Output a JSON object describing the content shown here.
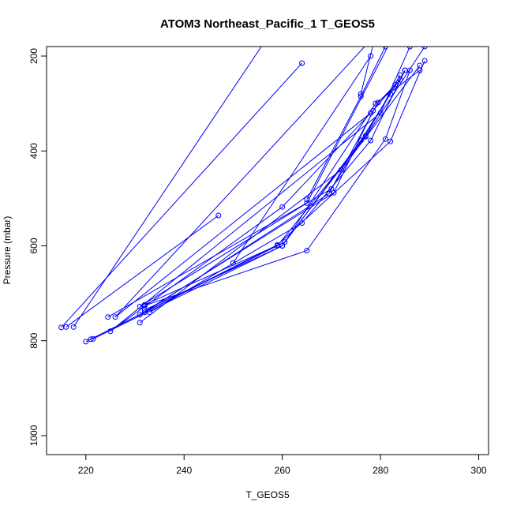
{
  "chart_data": {
    "type": "line",
    "title": "ATOM3 Northeast_Pacific_1 T_GEOS5",
    "xlabel": "T_GEOS5",
    "ylabel": "Pressure (mbar)",
    "xlim": [
      212,
      302
    ],
    "ylim": [
      1040,
      180
    ],
    "y_reversed": true,
    "xticks": [
      220,
      240,
      260,
      280,
      300
    ],
    "yticks": [
      200,
      400,
      600,
      800,
      1000
    ],
    "grid": false,
    "series_color": "#0000ff",
    "series": [
      {
        "points": [
          [
            247,
            536
          ],
          [
            216,
            771
          ]
        ]
      },
      {
        "points": [
          [
            217.5,
            771
          ],
          [
            258,
            145
          ]
        ]
      },
      {
        "points": [
          [
            215,
            772
          ],
          [
            264,
            215
          ]
        ]
      },
      {
        "points": [
          [
            276,
            280
          ],
          [
            279,
            155
          ],
          [
            226,
            750
          ],
          [
            278,
            320
          ],
          [
            260,
            518
          ],
          [
            225,
            780
          ],
          [
            280,
            320
          ],
          [
            286,
            180
          ]
        ]
      },
      {
        "points": [
          [
            265,
            502
          ],
          [
            276,
            285
          ],
          [
            281,
            180
          ]
        ]
      },
      {
        "points": [
          [
            250,
            636
          ],
          [
            278,
            200
          ]
        ]
      },
      {
        "points": [
          [
            231,
            728
          ],
          [
            265,
            510
          ],
          [
            282,
            170
          ]
        ]
      },
      {
        "points": [
          [
            224.5,
            750
          ],
          [
            270,
            480
          ],
          [
            285,
            230
          ]
        ]
      },
      {
        "points": [
          [
            231,
            762
          ],
          [
            272,
            440
          ],
          [
            288,
            220
          ]
        ]
      },
      {
        "points": [
          [
            220,
            802
          ],
          [
            259,
            600
          ],
          [
            277,
            370
          ],
          [
            289,
            180
          ]
        ]
      },
      {
        "points": [
          [
            221,
            797
          ],
          [
            259,
            598
          ],
          [
            282,
            380
          ],
          [
            289,
            210
          ]
        ]
      },
      {
        "points": [
          [
            221.5,
            796
          ],
          [
            260,
            600
          ],
          [
            279,
            300
          ],
          [
            288,
            230
          ]
        ]
      },
      {
        "points": [
          [
            232,
            726
          ],
          [
            265,
            610
          ],
          [
            281,
            375
          ],
          [
            286,
            230
          ]
        ]
      },
      {
        "points": [
          [
            233,
            740
          ],
          [
            264,
            552
          ],
          [
            278,
            378
          ],
          [
            285,
            230
          ]
        ]
      },
      {
        "points": [
          [
            232,
            724
          ],
          [
            260.5,
            592
          ],
          [
            277,
            368
          ],
          [
            284,
            240
          ]
        ]
      },
      {
        "points": [
          [
            232,
            740
          ],
          [
            269.5,
            490
          ],
          [
            279.5,
            298
          ],
          [
            284,
            250
          ]
        ]
      },
      {
        "points": [
          [
            231,
            745
          ],
          [
            270.5,
            488
          ],
          [
            278.5,
            315
          ],
          [
            283,
            260
          ]
        ]
      },
      {
        "points": [
          [
            232,
            735
          ],
          [
            260,
            600
          ],
          [
            276,
            378
          ],
          [
            282,
            280
          ]
        ]
      }
    ]
  }
}
